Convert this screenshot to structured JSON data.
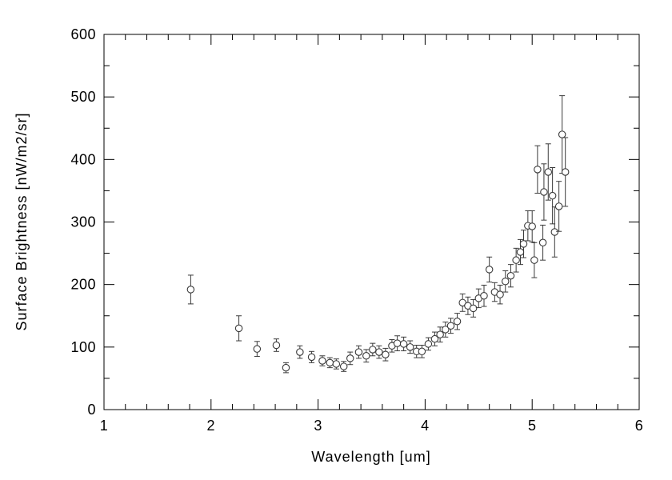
{
  "colors": {
    "axis": "#000000",
    "marker": "#3a3a3a",
    "text": "#000000",
    "background": "#ffffff"
  },
  "chart_data": {
    "type": "scatter",
    "title": "",
    "xlabel": "Wavelength [um]",
    "ylabel": "Surface Brightness [nW/m2/sr]",
    "xlim": [
      1,
      6
    ],
    "ylim": [
      0,
      600
    ],
    "x_ticks": [
      1,
      2,
      3,
      4,
      5,
      6
    ],
    "y_ticks": [
      0,
      100,
      200,
      300,
      400,
      500,
      600
    ],
    "x_minor_step": 0.2,
    "y_minor_step": 50,
    "tick_direction": "in",
    "grid": false,
    "legend": null,
    "marker": "open-circle",
    "error_bars": "vertical-with-caps",
    "points": [
      {
        "x": 1.81,
        "y": 192,
        "err": 23
      },
      {
        "x": 2.26,
        "y": 130,
        "err": 20
      },
      {
        "x": 2.43,
        "y": 97,
        "err": 12
      },
      {
        "x": 2.61,
        "y": 103,
        "err": 10
      },
      {
        "x": 2.7,
        "y": 67,
        "err": 8
      },
      {
        "x": 2.83,
        "y": 92,
        "err": 10
      },
      {
        "x": 2.94,
        "y": 84,
        "err": 9
      },
      {
        "x": 3.04,
        "y": 78,
        "err": 8
      },
      {
        "x": 3.11,
        "y": 75,
        "err": 8
      },
      {
        "x": 3.17,
        "y": 73,
        "err": 8
      },
      {
        "x": 3.24,
        "y": 69,
        "err": 8
      },
      {
        "x": 3.3,
        "y": 82,
        "err": 10
      },
      {
        "x": 3.38,
        "y": 92,
        "err": 10
      },
      {
        "x": 3.45,
        "y": 86,
        "err": 10
      },
      {
        "x": 3.51,
        "y": 96,
        "err": 10
      },
      {
        "x": 3.57,
        "y": 92,
        "err": 10
      },
      {
        "x": 3.63,
        "y": 88,
        "err": 10
      },
      {
        "x": 3.69,
        "y": 102,
        "err": 10
      },
      {
        "x": 3.74,
        "y": 106,
        "err": 12
      },
      {
        "x": 3.8,
        "y": 105,
        "err": 11
      },
      {
        "x": 3.86,
        "y": 100,
        "err": 10
      },
      {
        "x": 3.92,
        "y": 93,
        "err": 10
      },
      {
        "x": 3.97,
        "y": 93,
        "err": 10
      },
      {
        "x": 4.03,
        "y": 105,
        "err": 10
      },
      {
        "x": 4.09,
        "y": 113,
        "err": 11
      },
      {
        "x": 4.14,
        "y": 120,
        "err": 12
      },
      {
        "x": 4.19,
        "y": 128,
        "err": 12
      },
      {
        "x": 4.24,
        "y": 134,
        "err": 12
      },
      {
        "x": 4.3,
        "y": 141,
        "err": 13
      },
      {
        "x": 4.35,
        "y": 171,
        "err": 14
      },
      {
        "x": 4.4,
        "y": 166,
        "err": 14
      },
      {
        "x": 4.45,
        "y": 162,
        "err": 14
      },
      {
        "x": 4.5,
        "y": 178,
        "err": 15
      },
      {
        "x": 4.55,
        "y": 182,
        "err": 17
      },
      {
        "x": 4.6,
        "y": 224,
        "err": 20
      },
      {
        "x": 4.65,
        "y": 188,
        "err": 15
      },
      {
        "x": 4.7,
        "y": 184,
        "err": 15
      },
      {
        "x": 4.75,
        "y": 205,
        "err": 17
      },
      {
        "x": 4.8,
        "y": 214,
        "err": 18
      },
      {
        "x": 4.85,
        "y": 239,
        "err": 19
      },
      {
        "x": 4.89,
        "y": 252,
        "err": 20
      },
      {
        "x": 4.92,
        "y": 265,
        "err": 22
      },
      {
        "x": 4.96,
        "y": 294,
        "err": 24
      },
      {
        "x": 5.0,
        "y": 293,
        "err": 25
      },
      {
        "x": 5.02,
        "y": 239,
        "err": 28
      },
      {
        "x": 5.05,
        "y": 384,
        "err": 38
      },
      {
        "x": 5.1,
        "y": 267,
        "err": 28
      },
      {
        "x": 5.11,
        "y": 348,
        "err": 45
      },
      {
        "x": 5.15,
        "y": 380,
        "err": 45
      },
      {
        "x": 5.19,
        "y": 342,
        "err": 45
      },
      {
        "x": 5.21,
        "y": 284,
        "err": 40
      },
      {
        "x": 5.25,
        "y": 325,
        "err": 40
      },
      {
        "x": 5.28,
        "y": 440,
        "err": 62
      },
      {
        "x": 5.31,
        "y": 380,
        "err": 55
      }
    ]
  }
}
